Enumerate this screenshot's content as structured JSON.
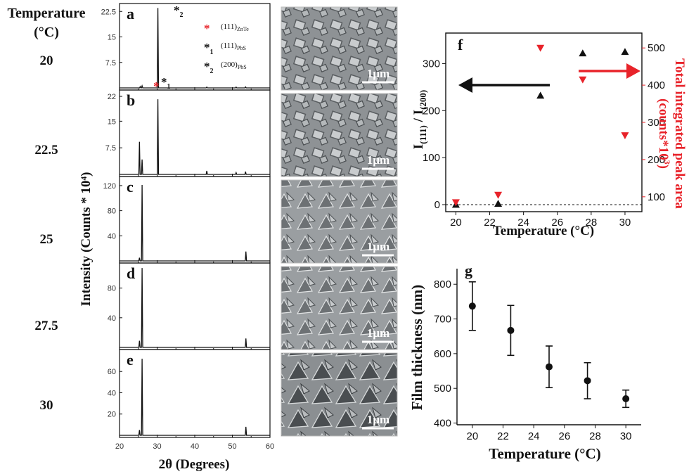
{
  "temperature_header": {
    "line1": "Temperature",
    "line2": "(°C)"
  },
  "temperature_labels": [
    "20",
    "22.5",
    "25",
    "27.5",
    "30"
  ],
  "xrd": {
    "ylabel": "Intensity (Counts * 10⁴)",
    "xlabel": "2θ (Degrees)",
    "x_ticks": [
      "20",
      "30",
      "40",
      "50",
      "60"
    ],
    "legend": [
      {
        "marker": "*",
        "sub": "",
        "label": "(111)",
        "label_sub": "ZnTe",
        "color": "#e8232a"
      },
      {
        "marker": "*",
        "sub": "1",
        "label": "(111)",
        "label_sub": "PbS",
        "color": "#111111"
      },
      {
        "marker": "*",
        "sub": "2",
        "label": "(200)",
        "label_sub": "PbS",
        "color": "#111111"
      }
    ],
    "peak_marks": [
      {
        "text": "*",
        "sub": "",
        "color": "#e8232a"
      },
      {
        "text": "*",
        "sub": "1",
        "color": "#111111"
      },
      {
        "text": "*",
        "sub": "2",
        "color": "#111111"
      }
    ]
  },
  "sem_scale_label": "1μm",
  "chart_data": [
    {
      "type": "line",
      "panel": "a",
      "xlim": [
        20,
        60
      ],
      "y_ticks": [
        "22.5",
        "15",
        "7.5"
      ],
      "ylim": [
        0,
        24
      ],
      "peaks": [
        {
          "x": 25.5,
          "y": 0.4
        },
        {
          "x": 26.0,
          "y": 0.6
        },
        {
          "x": 30.2,
          "y": 23.5
        },
        {
          "x": 43.2,
          "y": 0.25
        },
        {
          "x": 51.0,
          "y": 0.25
        },
        {
          "x": 53.5,
          "y": 0.3
        }
      ]
    },
    {
      "type": "line",
      "panel": "b",
      "xlim": [
        20,
        60
      ],
      "y_ticks": [
        "22",
        "15",
        "7.5"
      ],
      "ylim": [
        0,
        23
      ],
      "peaks": [
        {
          "x": 25.3,
          "y": 9.2
        },
        {
          "x": 26.0,
          "y": 4.2
        },
        {
          "x": 30.2,
          "y": 21.2
        },
        {
          "x": 43.2,
          "y": 1.0
        },
        {
          "x": 51.0,
          "y": 0.5
        },
        {
          "x": 53.5,
          "y": 0.8
        }
      ]
    },
    {
      "type": "line",
      "panel": "c",
      "xlim": [
        20,
        60
      ],
      "y_ticks": [
        "120",
        "80",
        "40"
      ],
      "ylim": [
        0,
        130
      ],
      "peaks": [
        {
          "x": 25.3,
          "y": 5
        },
        {
          "x": 26.0,
          "y": 121
        },
        {
          "x": 53.6,
          "y": 15
        }
      ]
    },
    {
      "type": "line",
      "panel": "d",
      "xlim": [
        20,
        60
      ],
      "y_ticks": [
        "80",
        "40"
      ],
      "ylim": [
        0,
        110
      ],
      "peaks": [
        {
          "x": 25.3,
          "y": 9
        },
        {
          "x": 26.0,
          "y": 107
        },
        {
          "x": 53.6,
          "y": 12
        }
      ]
    },
    {
      "type": "line",
      "panel": "e",
      "xlim": [
        20,
        60
      ],
      "y_ticks": [
        "60",
        "40",
        "20"
      ],
      "ylim": [
        0,
        78
      ],
      "peaks": [
        {
          "x": 25.3,
          "y": 5
        },
        {
          "x": 26.0,
          "y": 72
        },
        {
          "x": 53.6,
          "y": 8
        }
      ]
    },
    {
      "type": "scatter",
      "panel": "f",
      "xlabel": "Temperature (°C)",
      "ylabel_left": {
        "main": "I",
        "sub1": "(111)",
        "mid": " / I",
        "sub2": "(200)"
      },
      "ylabel_right": {
        "line1": "Total integrated peak area",
        "line2_pre": "(counts*10",
        "line2_sup": "3",
        "line2_post": ")"
      },
      "x_ticks": [
        "20",
        "22",
        "24",
        "26",
        "28",
        "30"
      ],
      "xlim": [
        19.4,
        31.0
      ],
      "y_left_ticks": [
        "0",
        "100",
        "200",
        "300"
      ],
      "ylim_left": [
        -15,
        365
      ],
      "y_right_ticks": [
        "100",
        "200",
        "300",
        "400",
        "500"
      ],
      "ylim_right": [
        60,
        540
      ],
      "series": [
        {
          "marker": "triangle-up",
          "color": "#111111",
          "axis": "left",
          "x": [
            20,
            22.5,
            25,
            27.5,
            30
          ],
          "y": [
            0,
            2,
            232,
            322,
            325
          ]
        },
        {
          "marker": "triangle-down",
          "color": "#e8232a",
          "axis": "right",
          "x": [
            20,
            22.5,
            25,
            27.5,
            30
          ],
          "y": [
            85,
            105,
            500,
            415,
            265
          ]
        }
      ],
      "reference_line_y": 0
    },
    {
      "type": "scatter",
      "panel": "g",
      "xlabel": "Temperature (°C)",
      "ylabel": "Film thickness (nm)",
      "x_ticks": [
        "20",
        "22",
        "24",
        "26",
        "28",
        "30"
      ],
      "xlim": [
        19.0,
        31.0
      ],
      "y_ticks": [
        "400",
        "500",
        "600",
        "700",
        "800"
      ],
      "ylim": [
        395,
        845
      ],
      "x": [
        20,
        22.5,
        25,
        27.5,
        30
      ],
      "y": [
        737,
        667,
        562,
        522,
        470
      ],
      "err": [
        70,
        72,
        60,
        52,
        25
      ]
    }
  ]
}
